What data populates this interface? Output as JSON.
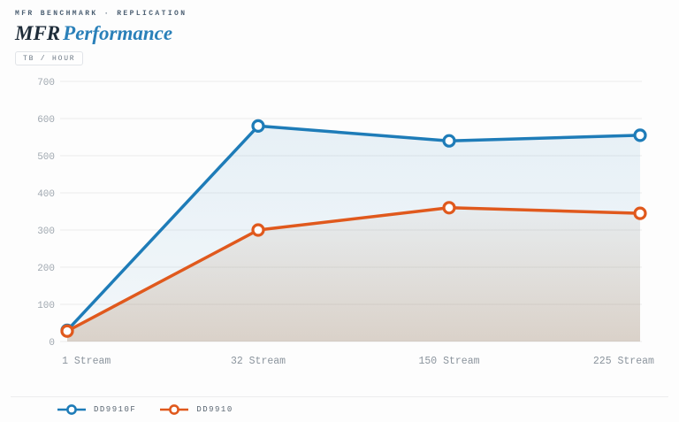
{
  "header": {
    "eyebrow": "MFR BENCHMARK · REPLICATION",
    "title_primary": "MFR",
    "title_secondary": "Performance",
    "unit_badge": "TB / HOUR"
  },
  "chart_data": {
    "type": "line",
    "title": "MFR Performance",
    "unit": "TB / HOUR",
    "categories": [
      "1 Stream",
      "32 Stream",
      "150 Stream",
      "225 Stream"
    ],
    "series": [
      {
        "name": "DD9910F",
        "color": "#1e7cb8",
        "fill_color": "#1e7cb8",
        "fill_opacity_top": 0.1,
        "fill_opacity_bottom": 0.05,
        "values": [
          30,
          580,
          540,
          555
        ]
      },
      {
        "name": "DD9910",
        "color": "#e0591d",
        "fill_color": "#96683f",
        "fill_opacity_top": 0.05,
        "fill_opacity_bottom": 0.26,
        "values": [
          28,
          300,
          360,
          345
        ]
      }
    ],
    "xlabel": "",
    "ylabel": "",
    "ylim": [
      0,
      700
    ],
    "ytick_step": 100,
    "grid": true,
    "marker": "circle",
    "area_fill": true,
    "legend_position": "bottom-left"
  }
}
